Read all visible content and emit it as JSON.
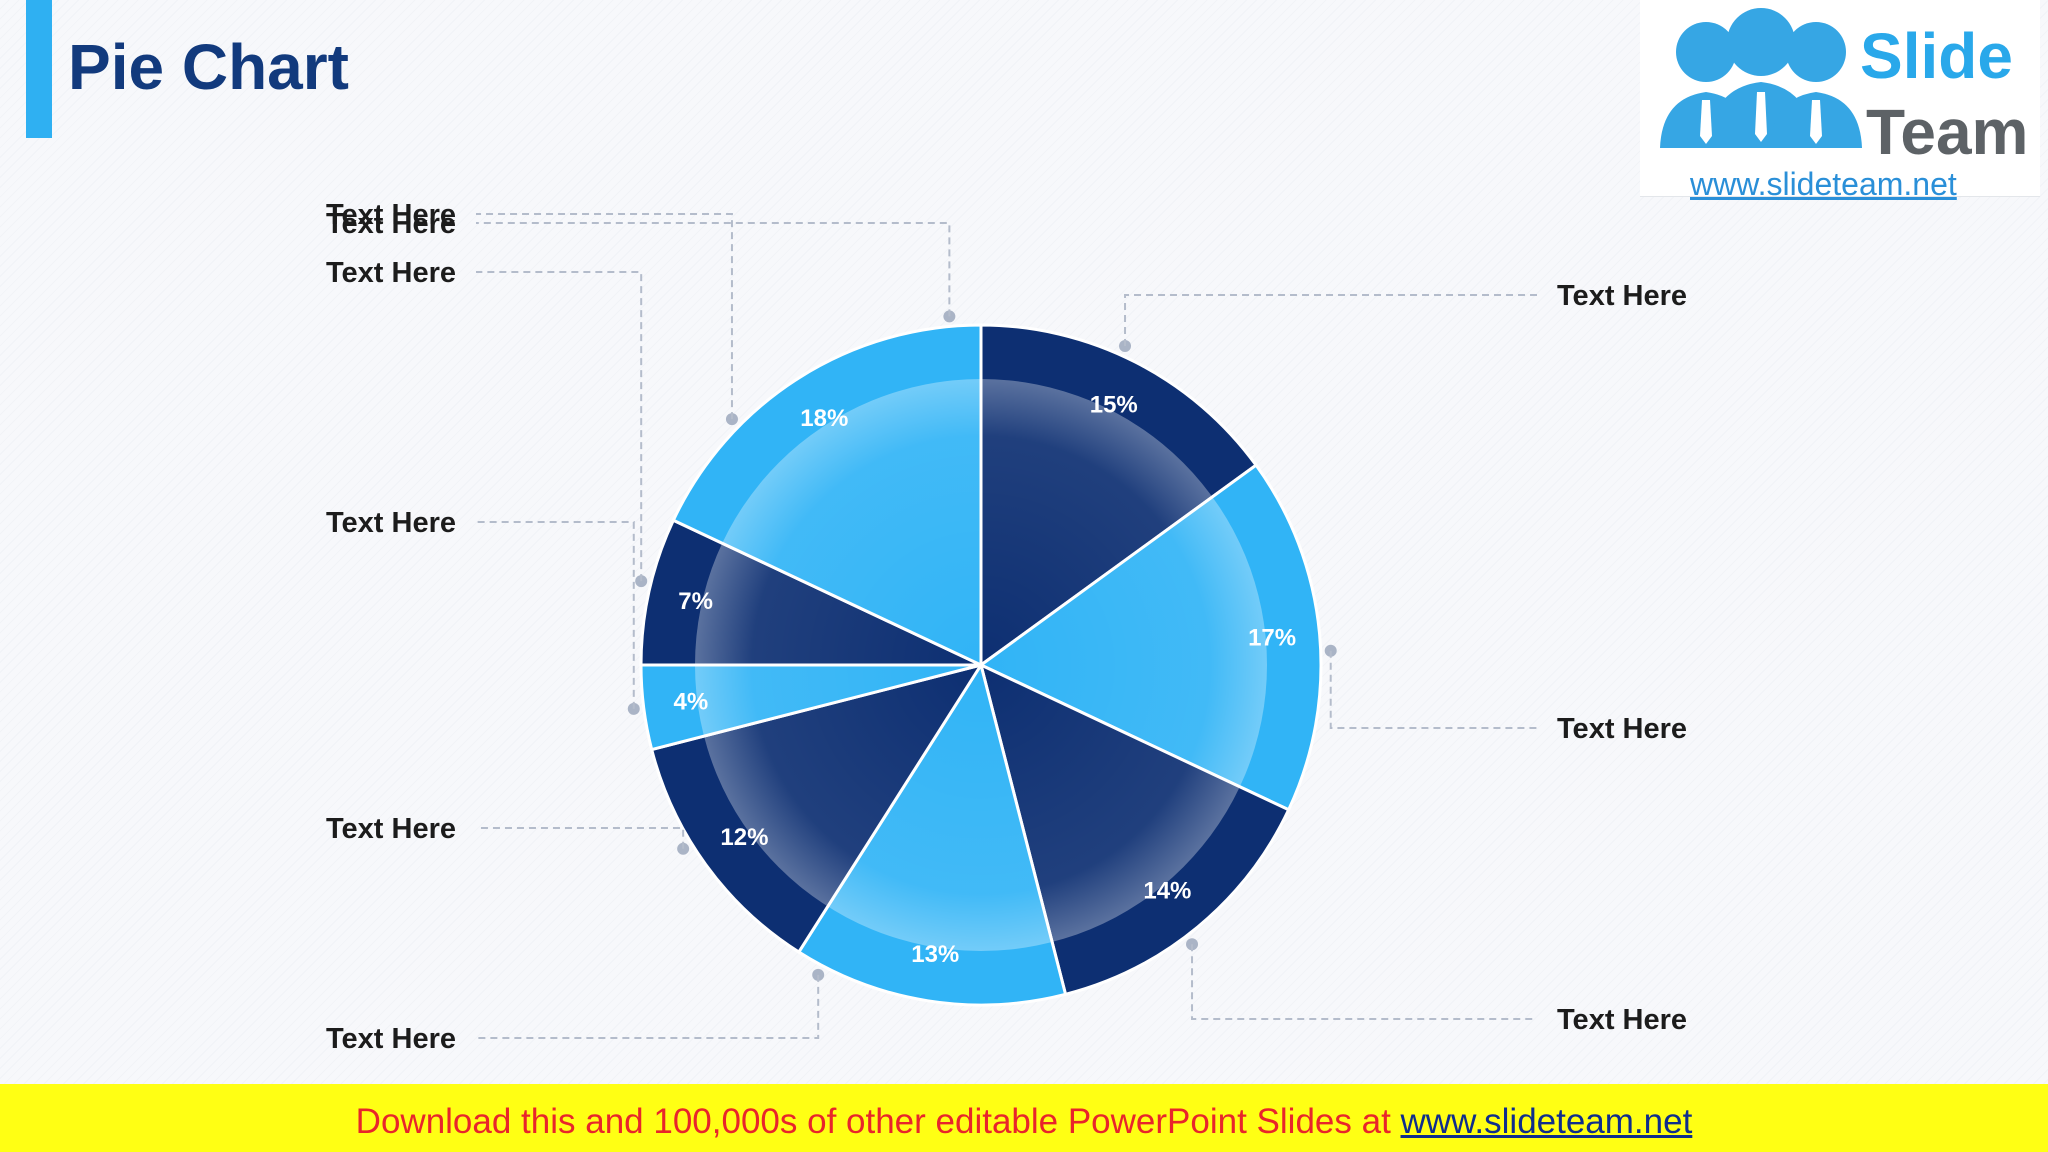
{
  "title": "Pie Chart",
  "logo": {
    "line1": "Slide",
    "line2": "Team",
    "url": "www.slideteam.net"
  },
  "footer": {
    "text": "Download this and 100,000s of other editable PowerPoint Slides at ",
    "link": "www.slideteam.net"
  },
  "colors": {
    "dark": "#0d2f72",
    "light": "#31b4f6",
    "accent": "#2fb0f2",
    "title": "#123a7d"
  },
  "chart_data": {
    "type": "pie",
    "start": "12 o'clock",
    "direction": "clockwise",
    "slices": [
      {
        "label": "Text Here",
        "value": 15,
        "value_label": "15%",
        "color": "#0d2f72"
      },
      {
        "label": "Text Here",
        "value": 17,
        "value_label": "17%",
        "color": "#31b4f6"
      },
      {
        "label": "Text Here",
        "value": 14,
        "value_label": "14%",
        "color": "#0d2f72"
      },
      {
        "label": "Text Here",
        "value": 13,
        "value_label": "13%",
        "color": "#31b4f6"
      },
      {
        "label": "Text Here",
        "value": 12,
        "value_label": "12%",
        "color": "#0d2f72"
      },
      {
        "label": "Text Here",
        "value": 4,
        "value_label": "4%",
        "color": "#31b4f6"
      },
      {
        "label": "Text Here",
        "value": 7,
        "value_label": "7%",
        "color": "#0d2f72"
      },
      {
        "label": "Text Here",
        "value": 18,
        "value_label": "18%",
        "color": "#31b4f6"
      }
    ]
  }
}
